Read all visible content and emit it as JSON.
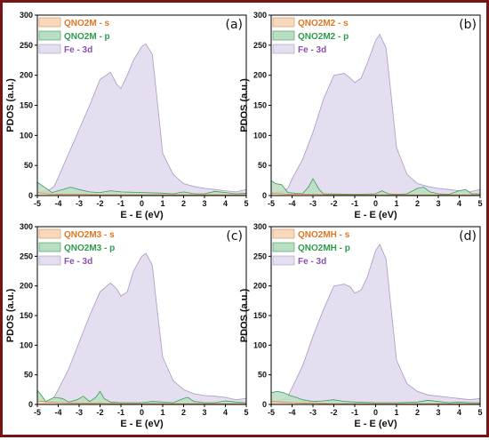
{
  "colors": {
    "s_fill": "#f7d9bf",
    "s_line": "#e08a40",
    "s_text": "#e0761f",
    "p_fill": "#b9dfc2",
    "p_line": "#3f9a5a",
    "p_text": "#2f9a4a",
    "d_fill": "#e4def0",
    "d_line": "#a99abf",
    "d_text": "#8a4fb0",
    "frame": "#7a1414"
  },
  "chart_data": [
    {
      "type": "area",
      "panel": "(a)",
      "xlabel": "E - E (eV)",
      "ylabel": "PDOS (a.u.)",
      "xlim": [
        -5,
        5
      ],
      "ylim": [
        0,
        300
      ],
      "xticks": [
        -5,
        -4,
        -3,
        -2,
        -1,
        0,
        1,
        2,
        3,
        4,
        5
      ],
      "yticks": [
        0,
        50,
        100,
        150,
        200,
        250,
        300
      ],
      "legend_position": "top-left",
      "series": [
        {
          "name": "QNO2M - s",
          "key": "s",
          "x": [
            -5,
            -4.5,
            -4,
            -3,
            -2,
            -1,
            0,
            1,
            2,
            3,
            4,
            5
          ],
          "y": [
            5,
            3,
            2,
            2,
            1,
            1,
            1,
            1,
            1,
            1,
            1,
            1
          ]
        },
        {
          "name": "QNO2M - p",
          "key": "p",
          "x": [
            -5,
            -4.7,
            -4.3,
            -4,
            -3.4,
            -3,
            -2.5,
            -2,
            -1.5,
            -1,
            0,
            1,
            1.5,
            2,
            2.5,
            3,
            3.5,
            4,
            4.5,
            5
          ],
          "y": [
            22,
            15,
            5,
            8,
            14,
            10,
            6,
            5,
            8,
            6,
            5,
            4,
            3,
            6,
            3,
            3,
            7,
            5,
            3,
            4
          ]
        },
        {
          "name": "Fe - 3d",
          "key": "d",
          "x": [
            -5,
            -4.5,
            -4.2,
            -4,
            -3.5,
            -3,
            -2.5,
            -2,
            -1.5,
            -1.2,
            -1,
            -0.7,
            -0.4,
            0,
            0.2,
            0.5,
            0.7,
            1,
            1.5,
            2,
            2.5,
            3,
            3.5,
            4,
            4.5,
            5
          ],
          "y": [
            5,
            8,
            15,
            30,
            70,
            110,
            150,
            193,
            205,
            185,
            178,
            200,
            225,
            248,
            252,
            235,
            170,
            70,
            35,
            20,
            15,
            12,
            10,
            8,
            6,
            10
          ]
        }
      ]
    },
    {
      "type": "area",
      "panel": "(b)",
      "xlabel": "E - E (eV)",
      "ylabel": "PDOS (a.u.)",
      "xlim": [
        -5,
        5
      ],
      "ylim": [
        0,
        300
      ],
      "xticks": [
        -5,
        -4,
        -3,
        -2,
        -1,
        0,
        1,
        2,
        3,
        4,
        5
      ],
      "yticks": [
        0,
        50,
        100,
        150,
        200,
        250,
        300
      ],
      "legend_position": "top-left",
      "series": [
        {
          "name": "QNO2M2 - s",
          "key": "s",
          "x": [
            -5,
            -4.5,
            -4,
            -3,
            -2,
            -1,
            0,
            1,
            2,
            3,
            4,
            5
          ],
          "y": [
            4,
            3,
            2,
            2,
            1,
            1,
            1,
            1,
            1,
            1,
            1,
            1
          ]
        },
        {
          "name": "QNO2M2 - p",
          "key": "p",
          "x": [
            -5,
            -4.8,
            -4.5,
            -4.2,
            -3.5,
            -3.2,
            -3,
            -2.7,
            -2.5,
            -1,
            0,
            0.3,
            0.6,
            1,
            1.5,
            2,
            2.3,
            2.6,
            3,
            3.5,
            4,
            4.3,
            4.6,
            5
          ],
          "y": [
            25,
            20,
            18,
            5,
            3,
            15,
            28,
            10,
            3,
            2,
            3,
            8,
            3,
            2,
            3,
            12,
            14,
            6,
            3,
            2,
            8,
            10,
            3,
            3
          ]
        },
        {
          "name": "Fe - 3d",
          "key": "d",
          "x": [
            -5,
            -4.5,
            -4.2,
            -4,
            -3.5,
            -3,
            -2.5,
            -2,
            -1.5,
            -1.2,
            -1,
            -0.7,
            -0.4,
            0,
            0.2,
            0.5,
            0.7,
            1,
            1.5,
            2,
            2.5,
            3,
            3.5,
            4,
            4.5,
            5
          ],
          "y": [
            5,
            6,
            12,
            28,
            60,
            105,
            160,
            200,
            203,
            195,
            188,
            195,
            220,
            258,
            268,
            245,
            180,
            80,
            35,
            20,
            15,
            12,
            10,
            8,
            6,
            10
          ]
        }
      ]
    },
    {
      "type": "area",
      "panel": "(c)",
      "xlabel": "E - E (eV)",
      "ylabel": "PDOS (a.u.)",
      "xlim": [
        -5,
        5
      ],
      "ylim": [
        0,
        300
      ],
      "xticks": [
        -5,
        -4,
        -3,
        -2,
        -1,
        0,
        1,
        2,
        3,
        4,
        5
      ],
      "yticks": [
        0,
        50,
        100,
        150,
        200,
        250,
        300
      ],
      "legend_position": "top-left",
      "series": [
        {
          "name": "QNO2M3 - s",
          "key": "s",
          "x": [
            -5,
            -4.5,
            -4,
            -3,
            -2,
            -1,
            0,
            1,
            2,
            3,
            4,
            5
          ],
          "y": [
            6,
            4,
            3,
            2,
            2,
            1,
            1,
            1,
            1,
            1,
            1,
            1
          ]
        },
        {
          "name": "QNO2M3 - p",
          "key": "p",
          "x": [
            -5,
            -4.8,
            -4.6,
            -4.2,
            -3.8,
            -3.5,
            -3.1,
            -2.8,
            -2.5,
            -2.2,
            -2,
            -1.8,
            -1.5,
            -1,
            0,
            0.5,
            1,
            1.5,
            2,
            2.2,
            2.5,
            3,
            3.5,
            4,
            4.5,
            5
          ],
          "y": [
            24,
            15,
            5,
            12,
            10,
            4,
            8,
            14,
            5,
            12,
            22,
            10,
            4,
            3,
            3,
            5,
            4,
            3,
            10,
            12,
            5,
            3,
            3,
            6,
            4,
            3
          ]
        },
        {
          "name": "Fe - 3d",
          "key": "d",
          "x": [
            -5,
            -4.5,
            -4.2,
            -4,
            -3.5,
            -3,
            -2.5,
            -2,
            -1.5,
            -1.2,
            -1,
            -0.7,
            -0.4,
            0,
            0.2,
            0.5,
            0.7,
            1,
            1.5,
            2,
            2.5,
            3,
            3.5,
            4,
            4.5,
            5
          ],
          "y": [
            5,
            6,
            12,
            25,
            60,
            105,
            150,
            190,
            205,
            195,
            183,
            190,
            225,
            250,
            255,
            235,
            170,
            80,
            40,
            25,
            18,
            15,
            14,
            12,
            8,
            10
          ]
        }
      ]
    },
    {
      "type": "area",
      "panel": "(d)",
      "xlabel": "E - E (eV)",
      "ylabel": "PDOS (a.u.)",
      "xlim": [
        -5,
        5
      ],
      "ylim": [
        0,
        300
      ],
      "xticks": [
        -5,
        -4,
        -3,
        -2,
        -1,
        0,
        1,
        2,
        3,
        4,
        5
      ],
      "yticks": [
        0,
        50,
        100,
        150,
        200,
        250,
        300
      ],
      "legend_position": "top-left",
      "series": [
        {
          "name": "QNO2MH - s",
          "key": "s",
          "x": [
            -5,
            -4.5,
            -4,
            -3,
            -2,
            -1,
            0,
            1,
            2,
            3,
            4,
            5
          ],
          "y": [
            5,
            4,
            3,
            2,
            1,
            1,
            1,
            1,
            1,
            1,
            1,
            1
          ]
        },
        {
          "name": "QNO2MH - p",
          "key": "p",
          "x": [
            -5,
            -4.7,
            -4.4,
            -4.1,
            -3.8,
            -3.5,
            -3,
            -2.5,
            -2,
            -1.5,
            -1,
            0,
            1,
            2,
            2.5,
            3,
            3.5,
            4,
            4.5,
            5
          ],
          "y": [
            20,
            22,
            20,
            15,
            12,
            8,
            5,
            6,
            8,
            5,
            4,
            3,
            3,
            4,
            7,
            5,
            3,
            4,
            3,
            3
          ]
        },
        {
          "name": "Fe - 3d",
          "key": "d",
          "x": [
            -5,
            -4.5,
            -4.2,
            -4,
            -3.5,
            -3,
            -2.5,
            -2,
            -1.5,
            -1.2,
            -1,
            -0.7,
            -0.4,
            0,
            0.2,
            0.5,
            0.7,
            1,
            1.5,
            2,
            2.5,
            3,
            3.5,
            4,
            4.5,
            5
          ],
          "y": [
            5,
            7,
            14,
            28,
            65,
            115,
            160,
            200,
            203,
            198,
            188,
            193,
            215,
            260,
            270,
            245,
            175,
            75,
            35,
            22,
            16,
            14,
            12,
            10,
            8,
            10
          ]
        }
      ]
    }
  ]
}
